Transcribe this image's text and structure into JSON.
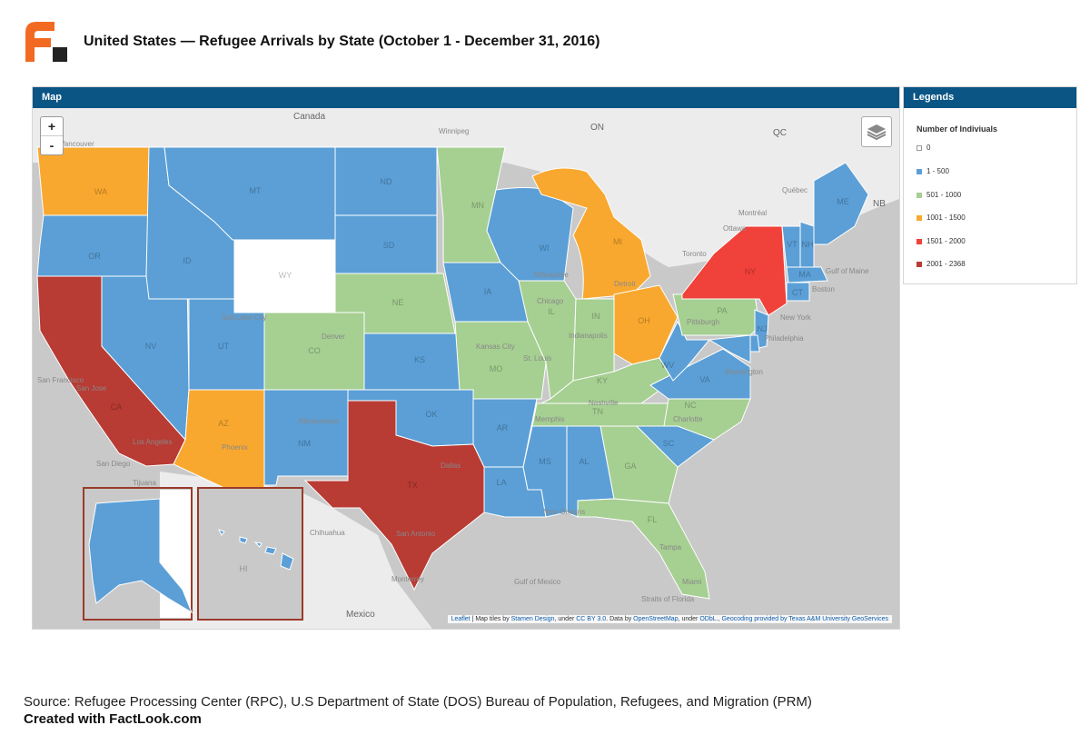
{
  "header": {
    "title": "United States — Refugee Arrivals by State (October 1 - December 31, 2016)"
  },
  "map_panel": {
    "title": "Map",
    "zoom_in": "+",
    "zoom_out": "-",
    "layers_icon": "layers-icon"
  },
  "legend_panel": {
    "title": "Legends",
    "heading": "Number of Indiviuals",
    "items": [
      {
        "label": "0",
        "color": "#ffffff"
      },
      {
        "label": "1 - 500",
        "color": "#5b9fd6"
      },
      {
        "label": "501 - 1000",
        "color": "#a6cf92"
      },
      {
        "label": "1001 - 1500",
        "color": "#f9a82f"
      },
      {
        "label": "1501 - 2000",
        "color": "#f0413a"
      },
      {
        "label": "2001 - 2368",
        "color": "#b83b34"
      }
    ]
  },
  "colors": {
    "zero": "#ffffff",
    "low": "#5b9fd6",
    "mid": "#a6cf92",
    "high": "#f9a82f",
    "veryhigh": "#f0413a",
    "max": "#b83b34",
    "header_bar": "#0b5585",
    "basemap": "#c9c9c9",
    "inset_border": "#9a3b2a"
  },
  "states": {
    "WA": "high",
    "OR": "low",
    "CA": "max",
    "NV": "low",
    "ID": "low",
    "MT": "low",
    "WY": "zero",
    "UT": "low",
    "AZ": "high",
    "CO": "mid",
    "NM": "low",
    "ND": "low",
    "SD": "low",
    "NE": "mid",
    "KS": "low",
    "OK": "low",
    "TX": "max",
    "MN": "mid",
    "IA": "low",
    "MO": "mid",
    "AR": "low",
    "LA": "low",
    "WI": "low",
    "IL": "mid",
    "MI": "high",
    "IN": "mid",
    "OH": "high",
    "KY": "mid",
    "TN": "mid",
    "MS": "low",
    "AL": "low",
    "GA": "mid",
    "FL": "mid",
    "SC": "low",
    "NC": "mid",
    "VA": "low",
    "WV": "low",
    "PA": "mid",
    "NY": "veryhigh",
    "VT": "low",
    "NH": "low",
    "ME": "low",
    "MA": "low",
    "CT": "low",
    "NJ": "low",
    "DE": "low",
    "MD": "low",
    "AK": "low",
    "HI": "low"
  },
  "map_labels": {
    "countries": [
      "Canada",
      "Mexico"
    ],
    "regions": [
      "ON",
      "QC",
      "NB"
    ],
    "cities": [
      "Vancouver",
      "Winnipeg",
      "Québec",
      "Montréal",
      "Ottawa",
      "Toronto",
      "Boston",
      "New York",
      "Philadelphia",
      "Pittsburgh",
      "Chicago",
      "Milwaukee",
      "Detroit",
      "Indianapolis",
      "Kansas City",
      "St. Louis",
      "Denver",
      "Salt Lake City",
      "San Francisco",
      "San Jose",
      "Los Angeles",
      "San Diego",
      "Tijuana",
      "Phoenix",
      "Albuquerque",
      "Dallas",
      "San Antonio",
      "Chihuahua",
      "Monterrey",
      "New Orleans",
      "Nashville",
      "Memphis",
      "Charlotte",
      "Tampa",
      "Miami",
      "Washington",
      "Gulf of Maine",
      "Gulf of Mexico",
      "Straits of Florida"
    ],
    "state_codes": [
      "WA",
      "OR",
      "CA",
      "NV",
      "ID",
      "MT",
      "WY",
      "UT",
      "AZ",
      "CO",
      "NM",
      "ND",
      "SD",
      "NE",
      "KS",
      "OK",
      "TX",
      "MN",
      "IA",
      "MO",
      "AR",
      "LA",
      "WI",
      "IL",
      "MI",
      "IN",
      "OH",
      "KY",
      "TN",
      "MS",
      "AL",
      "GA",
      "FL",
      "SC",
      "NC",
      "VA",
      "WV",
      "PA",
      "NY",
      "VT",
      "NH",
      "ME",
      "MA",
      "CT",
      "NJ",
      "HI"
    ]
  },
  "attribution": {
    "leaflet": "Leaflet",
    "text1": " | Map tiles by ",
    "stamen": "Stamen Design",
    "text2": ", under ",
    "ccby": "CC BY 3.0",
    "text3": ". Data by ",
    "osm": "OpenStreetMap",
    "text4": ", under ",
    "odbl": "ODbL",
    "text5": "., ",
    "geocoding": "Geocoding provided by Texas A&M University GeoServices"
  },
  "footer": {
    "source": "Source: Refugee Processing Center (RPC), U.S Department of State (DOS) Bureau of Population, Refugees, and Migration (PRM)",
    "credit": "Created with FactLook.com"
  }
}
